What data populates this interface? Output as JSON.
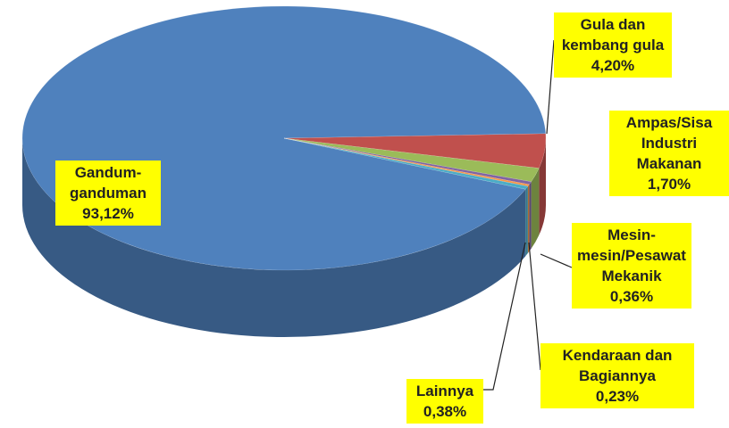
{
  "chart_data": {
    "type": "pie3d",
    "categories": [
      "Gandum-ganduman",
      "Gula dan kembang gula",
      "Ampas/Sisa Industri Makanan",
      "Mesin-mesin/Pesawat Mekanik",
      "Kendaraan dan Bagiannya",
      "Lainnya"
    ],
    "values": [
      93.12,
      4.2,
      1.7,
      0.36,
      0.23,
      0.38
    ],
    "value_labels": [
      "93,12%",
      "4,20%",
      "1,70%",
      "0,36%",
      "0,23%",
      "0,38%"
    ],
    "colors": [
      "#4f81bd",
      "#c0504d",
      "#9bbb59",
      "#8064a2",
      "#f79646",
      "#4bacc6"
    ]
  }
}
